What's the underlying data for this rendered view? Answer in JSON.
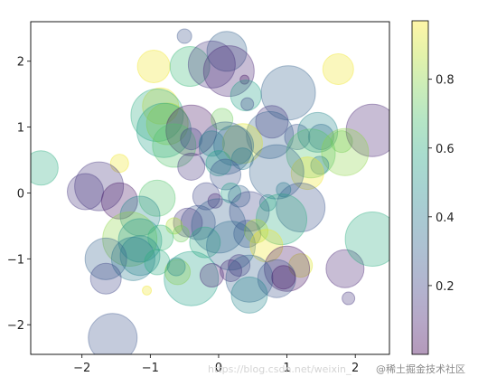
{
  "chart_data": {
    "type": "scatter",
    "title": "",
    "xlabel": "",
    "ylabel": "",
    "xlim": [
      -2.75,
      2.5
    ],
    "ylim": [
      -2.45,
      2.6
    ],
    "x_ticks": [
      -2,
      -1,
      0,
      1,
      2
    ],
    "x_tick_labels": [
      "−2",
      "−1",
      "0",
      "1",
      "2"
    ],
    "y_ticks": [
      -2,
      -1,
      0,
      1,
      2
    ],
    "y_tick_labels": [
      "−2",
      "−1",
      "0",
      "1",
      "2"
    ],
    "grid": false,
    "alpha": 0.3,
    "colormap": "viridis",
    "colorbar": {
      "range": [
        0.0,
        0.97
      ],
      "ticks": [
        0.2,
        0.4,
        0.6,
        0.8
      ],
      "tick_labels": [
        "0.2",
        "0.4",
        "0.6",
        "0.8"
      ]
    },
    "marker_size_unit": "sqrt of scatter size (relative)",
    "points": [
      {
        "x": -0.5,
        "y": 2.38,
        "size": 8,
        "color": 0.25
      },
      {
        "x": 0.12,
        "y": 2.15,
        "size": 22,
        "color": 0.3
      },
      {
        "x": -0.95,
        "y": 1.92,
        "size": 18,
        "color": 0.95
      },
      {
        "x": -0.42,
        "y": 1.92,
        "size": 22,
        "color": 0.65
      },
      {
        "x": -0.1,
        "y": 1.95,
        "size": 26,
        "color": 0.15
      },
      {
        "x": 0.15,
        "y": 1.85,
        "size": 28,
        "color": 0.1
      },
      {
        "x": 0.38,
        "y": 1.72,
        "size": 5,
        "color": 0.05
      },
      {
        "x": 1.75,
        "y": 1.88,
        "size": 17,
        "color": 0.95
      },
      {
        "x": 0.4,
        "y": 1.48,
        "size": 17,
        "color": 0.55
      },
      {
        "x": 1.02,
        "y": 1.52,
        "size": 30,
        "color": 0.3
      },
      {
        "x": 0.42,
        "y": 1.35,
        "size": 7,
        "color": 0.2
      },
      {
        "x": -0.85,
        "y": 1.32,
        "size": 20,
        "color": 0.95
      },
      {
        "x": -0.9,
        "y": 1.18,
        "size": 29,
        "color": 0.6
      },
      {
        "x": -0.75,
        "y": 1.05,
        "size": 23,
        "color": 0.85
      },
      {
        "x": -0.8,
        "y": 0.95,
        "size": 30,
        "color": 0.55
      },
      {
        "x": -0.4,
        "y": 0.95,
        "size": 28,
        "color": 0.05
      },
      {
        "x": 0.05,
        "y": 1.12,
        "size": 12,
        "color": 0.75
      },
      {
        "x": 0.78,
        "y": 1.08,
        "size": 18,
        "color": 0.15
      },
      {
        "x": 0.75,
        "y": 0.88,
        "size": 26,
        "color": 0.3
      },
      {
        "x": 1.15,
        "y": 0.85,
        "size": 14,
        "color": 0.25
      },
      {
        "x": 1.45,
        "y": 0.92,
        "size": 22,
        "color": 0.45
      },
      {
        "x": 1.5,
        "y": 0.85,
        "size": 14,
        "color": 0.35
      },
      {
        "x": 1.8,
        "y": 0.78,
        "size": 12,
        "color": 0.75
      },
      {
        "x": 2.25,
        "y": 0.95,
        "size": 29,
        "color": 0.1
      },
      {
        "x": -0.65,
        "y": 0.72,
        "size": 24,
        "color": 0.7
      },
      {
        "x": -0.4,
        "y": 0.82,
        "size": 12,
        "color": 0.2
      },
      {
        "x": -0.1,
        "y": 0.75,
        "size": 14,
        "color": 0.5
      },
      {
        "x": 0.35,
        "y": 0.75,
        "size": 22,
        "color": 0.92
      },
      {
        "x": 0.22,
        "y": 0.72,
        "size": 22,
        "color": 0.35
      },
      {
        "x": 0.1,
        "y": 0.68,
        "size": 29,
        "color": 0.3
      },
      {
        "x": 1.35,
        "y": 0.6,
        "size": 27,
        "color": 0.7
      },
      {
        "x": 1.85,
        "y": 0.62,
        "size": 26,
        "color": 0.8
      },
      {
        "x": -1.45,
        "y": 0.45,
        "size": 10,
        "color": 0.95
      },
      {
        "x": 0.35,
        "y": 0.52,
        "size": 12,
        "color": 0.4
      },
      {
        "x": 0.0,
        "y": 0.45,
        "size": 14,
        "color": 0.55
      },
      {
        "x": -0.4,
        "y": 0.4,
        "size": 15,
        "color": 0.15
      },
      {
        "x": -2.6,
        "y": 0.38,
        "size": 19,
        "color": 0.6
      },
      {
        "x": 1.48,
        "y": 0.42,
        "size": 10,
        "color": 0.4
      },
      {
        "x": 1.3,
        "y": 0.3,
        "size": 18,
        "color": 0.95
      },
      {
        "x": 0.85,
        "y": 0.32,
        "size": 30,
        "color": 0.3
      },
      {
        "x": 0.1,
        "y": 0.28,
        "size": 17,
        "color": 0.25
      },
      {
        "x": -1.75,
        "y": 0.1,
        "size": 27,
        "color": 0.15
      },
      {
        "x": -1.95,
        "y": 0.02,
        "size": 20,
        "color": 0.15
      },
      {
        "x": -1.45,
        "y": -0.12,
        "size": 20,
        "color": 0.05
      },
      {
        "x": -0.9,
        "y": -0.08,
        "size": 20,
        "color": 0.7
      },
      {
        "x": -0.18,
        "y": -0.05,
        "size": 15,
        "color": 0.2
      },
      {
        "x": 0.18,
        "y": 0.0,
        "size": 11,
        "color": 0.55
      },
      {
        "x": 0.3,
        "y": -0.05,
        "size": 12,
        "color": 0.3
      },
      {
        "x": -0.05,
        "y": -0.12,
        "size": 8,
        "color": 0.1
      },
      {
        "x": 0.72,
        "y": -0.15,
        "size": 9,
        "color": 0.45
      },
      {
        "x": 1.2,
        "y": -0.22,
        "size": 27,
        "color": 0.25
      },
      {
        "x": -1.15,
        "y": -0.35,
        "size": 22,
        "color": 0.45
      },
      {
        "x": 0.45,
        "y": -0.28,
        "size": 22,
        "color": 0.2
      },
      {
        "x": -0.3,
        "y": -0.45,
        "size": 19,
        "color": 0.25
      },
      {
        "x": -0.45,
        "y": -0.45,
        "size": 16,
        "color": 0.15
      },
      {
        "x": 0.0,
        "y": -0.5,
        "size": 30,
        "color": 0.3
      },
      {
        "x": 0.92,
        "y": -0.4,
        "size": 28,
        "color": 0.6
      },
      {
        "x": -0.65,
        "y": -0.5,
        "size": 9,
        "color": 0.85
      },
      {
        "x": -0.55,
        "y": -0.62,
        "size": 9,
        "color": 0.75
      },
      {
        "x": 0.42,
        "y": -0.62,
        "size": 15,
        "color": 0.25
      },
      {
        "x": 0.55,
        "y": -0.58,
        "size": 13,
        "color": 0.85
      },
      {
        "x": -1.3,
        "y": -0.7,
        "size": 30,
        "color": 0.8
      },
      {
        "x": -1.15,
        "y": -0.72,
        "size": 24,
        "color": 0.5
      },
      {
        "x": -0.85,
        "y": -0.68,
        "size": 14,
        "color": 0.65
      },
      {
        "x": -0.2,
        "y": -0.75,
        "size": 17,
        "color": 0.6
      },
      {
        "x": 0.18,
        "y": -0.8,
        "size": 27,
        "color": 0.35
      },
      {
        "x": 0.7,
        "y": -0.8,
        "size": 18,
        "color": 0.95
      },
      {
        "x": -1.15,
        "y": -0.95,
        "size": 22,
        "color": 0.45
      },
      {
        "x": -1.25,
        "y": -1.0,
        "size": 24,
        "color": 0.4
      },
      {
        "x": -1.65,
        "y": -1.0,
        "size": 23,
        "color": 0.3
      },
      {
        "x": -0.9,
        "y": -1.05,
        "size": 14,
        "color": 0.6
      },
      {
        "x": 1.2,
        "y": -1.1,
        "size": 13,
        "color": 0.92
      },
      {
        "x": -0.6,
        "y": -1.2,
        "size": 14,
        "color": 0.85
      },
      {
        "x": -0.62,
        "y": -1.12,
        "size": 10,
        "color": 0.4
      },
      {
        "x": 0.3,
        "y": -1.1,
        "size": 12,
        "color": 0.15
      },
      {
        "x": 0.18,
        "y": -1.18,
        "size": 12,
        "color": 0.1
      },
      {
        "x": 1.0,
        "y": -1.15,
        "size": 25,
        "color": 0.05
      },
      {
        "x": 1.85,
        "y": -1.15,
        "size": 21,
        "color": 0.1
      },
      {
        "x": -1.65,
        "y": -1.3,
        "size": 17,
        "color": 0.2
      },
      {
        "x": -0.4,
        "y": -1.3,
        "size": 30,
        "color": 0.55
      },
      {
        "x": -0.1,
        "y": -1.25,
        "size": 13,
        "color": 0.1
      },
      {
        "x": 0.45,
        "y": -1.3,
        "size": 26,
        "color": 0.3
      },
      {
        "x": 0.85,
        "y": -1.3,
        "size": 21,
        "color": 0.25
      },
      {
        "x": 0.95,
        "y": -1.28,
        "size": 13,
        "color": 0.05
      },
      {
        "x": -1.05,
        "y": -1.48,
        "size": 5,
        "color": 0.95
      },
      {
        "x": 0.45,
        "y": -1.55,
        "size": 20,
        "color": 0.45
      },
      {
        "x": 1.9,
        "y": -1.6,
        "size": 7,
        "color": 0.15
      },
      {
        "x": -1.55,
        "y": -2.2,
        "size": 27,
        "color": 0.25
      },
      {
        "x": 2.25,
        "y": -0.7,
        "size": 30,
        "color": 0.6
      },
      {
        "x": 0.95,
        "y": 0.05,
        "size": 8,
        "color": 0.4
      }
    ]
  },
  "watermark": {
    "left_text": "https://blog.csdn.net/weixin_",
    "right_text": "@稀土掘金技术社区"
  }
}
